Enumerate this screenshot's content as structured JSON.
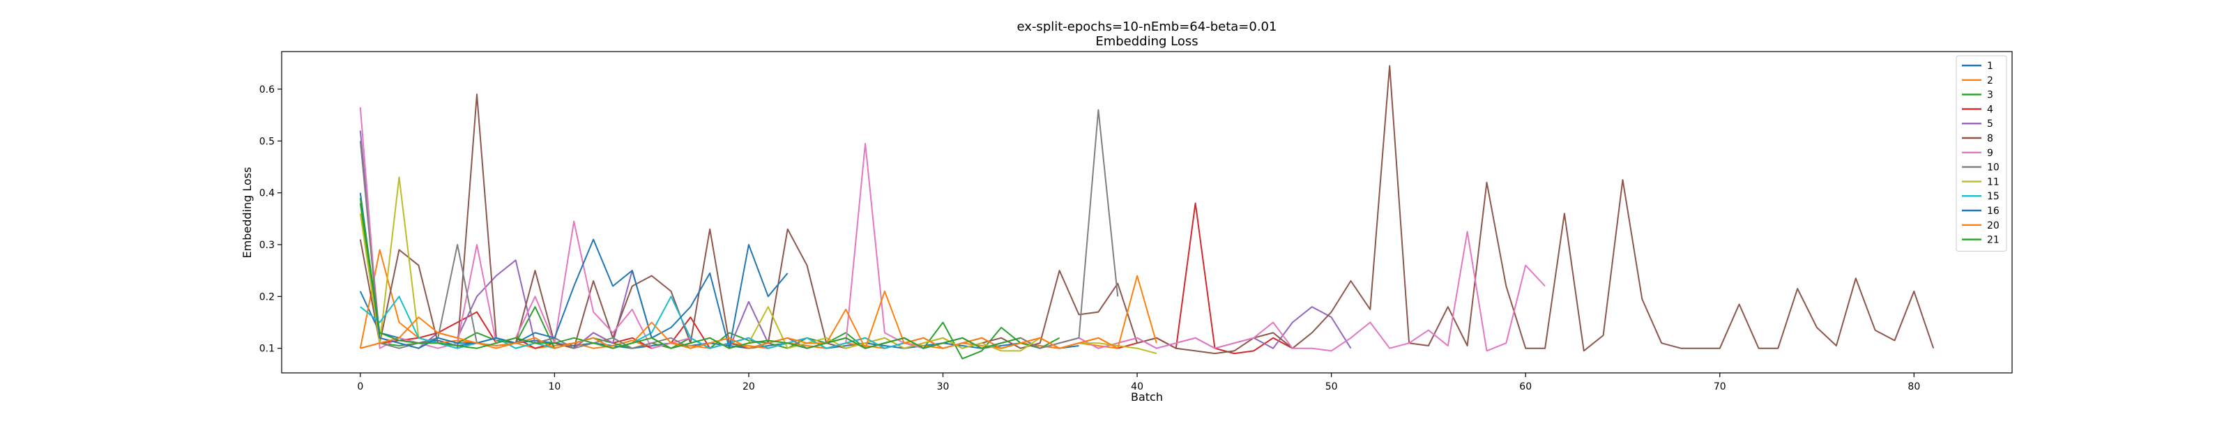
{
  "chart_data": {
    "type": "line",
    "title": "ex-split-epochs=10-nEmb=64-beta=0.01",
    "subtitle": "Embedding Loss",
    "xlabel": "Batch",
    "ylabel": "Embedding Loss",
    "xlim": [
      -4.05,
      85.05
    ],
    "ylim": [
      0.0525,
      0.6725
    ],
    "xticks": [
      0,
      10,
      20,
      30,
      40,
      50,
      60,
      70,
      80
    ],
    "yticks": [
      0.1,
      0.2,
      0.3,
      0.4,
      0.5,
      0.6
    ],
    "ytick_labels": [
      "0.1",
      "0.2",
      "0.3",
      "0.4",
      "0.5",
      "0.6"
    ],
    "grid": false,
    "legend_position": "top-right",
    "series": [
      {
        "name": "1",
        "color": "#1f77b4",
        "values": [
          0.21,
          0.13,
          0.12,
          0.11,
          0.115,
          0.105,
          0.11,
          0.105,
          0.11,
          0.115,
          0.11,
          0.105,
          0.11,
          0.105,
          0.1,
          0.105,
          0.11,
          0.105,
          0.11,
          0.105,
          0.1,
          0.105,
          0.11,
          0.105,
          0.1,
          0.105,
          0.11,
          0.105,
          0.1,
          0.105,
          0.11,
          0.105,
          0.1,
          0.105,
          0.11,
          0.105,
          0.1,
          0.105
        ]
      },
      {
        "name": "2",
        "color": "#ff7f0e",
        "values": [
          0.1,
          0.29,
          0.15,
          0.12,
          0.11,
          0.115,
          0.11,
          0.105,
          0.11,
          0.1,
          0.105,
          0.11,
          0.1,
          0.105,
          0.115,
          0.1,
          0.11,
          0.105,
          0.1,
          0.11,
          0.105,
          0.1,
          0.11,
          0.105,
          0.1,
          0.11,
          0.105,
          0.1,
          0.11,
          0.105,
          0.1,
          0.11,
          0.105,
          0.1,
          0.11,
          0.105,
          0.1,
          0.11,
          0.105,
          0.1
        ]
      },
      {
        "name": "3",
        "color": "#2ca02c",
        "values": [
          0.38,
          0.11,
          0.105,
          0.11,
          0.12,
          0.11,
          0.13,
          0.115,
          0.11,
          0.18,
          0.1,
          0.11,
          0.12,
          0.11,
          0.1,
          0.11,
          0.1,
          0.12,
          0.1,
          0.13,
          0.115,
          0.11,
          0.1,
          0.12,
          0.11,
          0.13,
          0.1,
          0.11,
          0.12,
          0.1,
          0.15,
          0.08,
          0.095,
          0.14,
          0.11,
          0.1,
          0.12
        ]
      },
      {
        "name": "4",
        "color": "#d62728",
        "values": [
          0.1,
          0.11,
          0.115,
          0.12,
          0.13,
          0.15,
          0.17,
          0.11,
          0.12,
          0.1,
          0.11,
          0.1,
          0.13,
          0.11,
          0.12,
          0.1,
          0.11,
          0.16,
          0.1,
          0.11,
          0.12,
          0.1,
          0.11,
          0.12,
          0.1,
          0.11,
          0.12,
          0.1,
          0.11,
          0.12,
          0.1,
          0.11,
          0.12,
          0.1,
          0.11,
          0.12,
          0.1,
          0.11,
          0.12,
          0.1,
          0.11,
          0.12,
          0.1,
          0.38,
          0.1,
          0.09,
          0.095,
          0.12,
          0.1
        ]
      },
      {
        "name": "5",
        "color": "#9467bd",
        "values": [
          0.52,
          0.12,
          0.11,
          0.1,
          0.13,
          0.12,
          0.2,
          0.24,
          0.27,
          0.11,
          0.12,
          0.1,
          0.13,
          0.11,
          0.25,
          0.12,
          0.1,
          0.11,
          0.12,
          0.1,
          0.19,
          0.11,
          0.12,
          0.1,
          0.11,
          0.12,
          0.1,
          0.11,
          0.12,
          0.1,
          0.11,
          0.12,
          0.1,
          0.11,
          0.12,
          0.1,
          0.11,
          0.12,
          0.1,
          0.11,
          0.12,
          0.1,
          0.11,
          0.12,
          0.1,
          0.11,
          0.12,
          0.1,
          0.15,
          0.18,
          0.16,
          0.1
        ]
      },
      {
        "name": "8",
        "color": "#8c564b",
        "values": [
          0.31,
          0.11,
          0.29,
          0.26,
          0.11,
          0.1,
          0.59,
          0.12,
          0.11,
          0.25,
          0.11,
          0.1,
          0.23,
          0.12,
          0.22,
          0.24,
          0.21,
          0.11,
          0.33,
          0.11,
          0.1,
          0.11,
          0.33,
          0.26,
          0.11,
          0.1,
          0.11,
          0.12,
          0.1,
          0.11,
          0.12,
          0.1,
          0.11,
          0.12,
          0.1,
          0.11,
          0.25,
          0.165,
          0.17,
          0.225,
          0.11,
          0.12,
          0.1,
          0.095,
          0.09,
          0.095,
          0.12,
          0.13,
          0.1,
          0.13,
          0.17,
          0.23,
          0.175,
          0.645,
          0.11,
          0.105,
          0.18,
          0.105,
          0.42,
          0.22,
          0.1,
          0.1,
          0.36,
          0.095,
          0.125,
          0.425,
          0.195,
          0.11,
          0.1,
          0.1,
          0.1,
          0.185,
          0.1,
          0.1,
          0.215,
          0.14,
          0.105,
          0.235,
          0.135,
          0.115,
          0.21,
          0.1
        ]
      },
      {
        "name": "9",
        "color": "#e377c2",
        "values": [
          0.565,
          0.1,
          0.12,
          0.11,
          0.1,
          0.11,
          0.3,
          0.11,
          0.12,
          0.2,
          0.11,
          0.345,
          0.17,
          0.13,
          0.175,
          0.1,
          0.11,
          0.12,
          0.1,
          0.11,
          0.12,
          0.1,
          0.11,
          0.12,
          0.1,
          0.11,
          0.495,
          0.13,
          0.11,
          0.1,
          0.11,
          0.12,
          0.1,
          0.11,
          0.12,
          0.1,
          0.11,
          0.12,
          0.1,
          0.11,
          0.12,
          0.1,
          0.11,
          0.12,
          0.1,
          0.11,
          0.12,
          0.15,
          0.1,
          0.1,
          0.095,
          0.12,
          0.15,
          0.1,
          0.11,
          0.135,
          0.105,
          0.325,
          0.095,
          0.11,
          0.26,
          0.22
        ]
      },
      {
        "name": "10",
        "color": "#7f7f7f",
        "values": [
          0.5,
          0.11,
          0.1,
          0.11,
          0.12,
          0.3,
          0.11,
          0.12,
          0.1,
          0.11,
          0.12,
          0.1,
          0.11,
          0.12,
          0.1,
          0.11,
          0.12,
          0.1,
          0.11,
          0.12,
          0.1,
          0.11,
          0.12,
          0.1,
          0.11,
          0.12,
          0.1,
          0.11,
          0.12,
          0.1,
          0.11,
          0.12,
          0.1,
          0.11,
          0.12,
          0.1,
          0.11,
          0.12,
          0.56,
          0.2
        ]
      },
      {
        "name": "11",
        "color": "#bcbd22",
        "values": [
          0.36,
          0.11,
          0.43,
          0.12,
          0.11,
          0.1,
          0.11,
          0.12,
          0.1,
          0.11,
          0.1,
          0.11,
          0.12,
          0.1,
          0.11,
          0.12,
          0.1,
          0.11,
          0.12,
          0.1,
          0.11,
          0.18,
          0.1,
          0.11,
          0.12,
          0.1,
          0.11,
          0.12,
          0.1,
          0.11,
          0.12,
          0.1,
          0.11,
          0.095,
          0.095,
          0.12,
          0.1,
          0.11,
          0.11,
          0.105,
          0.1,
          0.09
        ]
      },
      {
        "name": "15",
        "color": "#17becf",
        "values": [
          0.18,
          0.15,
          0.2,
          0.12,
          0.11,
          0.1,
          0.11,
          0.12,
          0.1,
          0.11,
          0.1,
          0.11,
          0.12,
          0.1,
          0.11,
          0.13,
          0.2,
          0.12,
          0.1,
          0.11,
          0.12,
          0.1,
          0.11,
          0.12,
          0.1,
          0.11,
          0.12,
          0.1,
          0.11,
          0.12,
          0.1,
          0.11,
          0.12,
          0.1,
          0.11
        ]
      },
      {
        "name": "16",
        "color": "#1f77b4",
        "values": [
          0.4,
          0.12,
          0.11,
          0.1,
          0.12,
          0.11,
          0.11,
          0.12,
          0.11,
          0.13,
          0.12,
          0.22,
          0.31,
          0.22,
          0.25,
          0.12,
          0.14,
          0.18,
          0.245,
          0.1,
          0.3,
          0.2,
          0.245
        ]
      },
      {
        "name": "20",
        "color": "#ff7f0e",
        "values": [
          0.1,
          0.11,
          0.12,
          0.16,
          0.13,
          0.12,
          0.11,
          0.1,
          0.11,
          0.12,
          0.1,
          0.11,
          0.12,
          0.1,
          0.11,
          0.15,
          0.11,
          0.1,
          0.11,
          0.12,
          0.1,
          0.11,
          0.12,
          0.11,
          0.11,
          0.175,
          0.1,
          0.21,
          0.11,
          0.12,
          0.1,
          0.11,
          0.12,
          0.1,
          0.11,
          0.12,
          0.1,
          0.11,
          0.12,
          0.1,
          0.24,
          0.11
        ]
      },
      {
        "name": "21",
        "color": "#2ca02c",
        "values": [
          0.39,
          0.13,
          0.115,
          0.11,
          0.11,
          0.105,
          0.1,
          0.11,
          0.12,
          0.11,
          0.11,
          0.12,
          0.11,
          0.1,
          0.11,
          0.12,
          0.1,
          0.11,
          0.12,
          0.1,
          0.11,
          0.115,
          0.11,
          0.1,
          0.11,
          0.12,
          0.1,
          0.11,
          0.12,
          0.1,
          0.11,
          0.12,
          0.1,
          0.11,
          0.12
        ]
      }
    ]
  }
}
